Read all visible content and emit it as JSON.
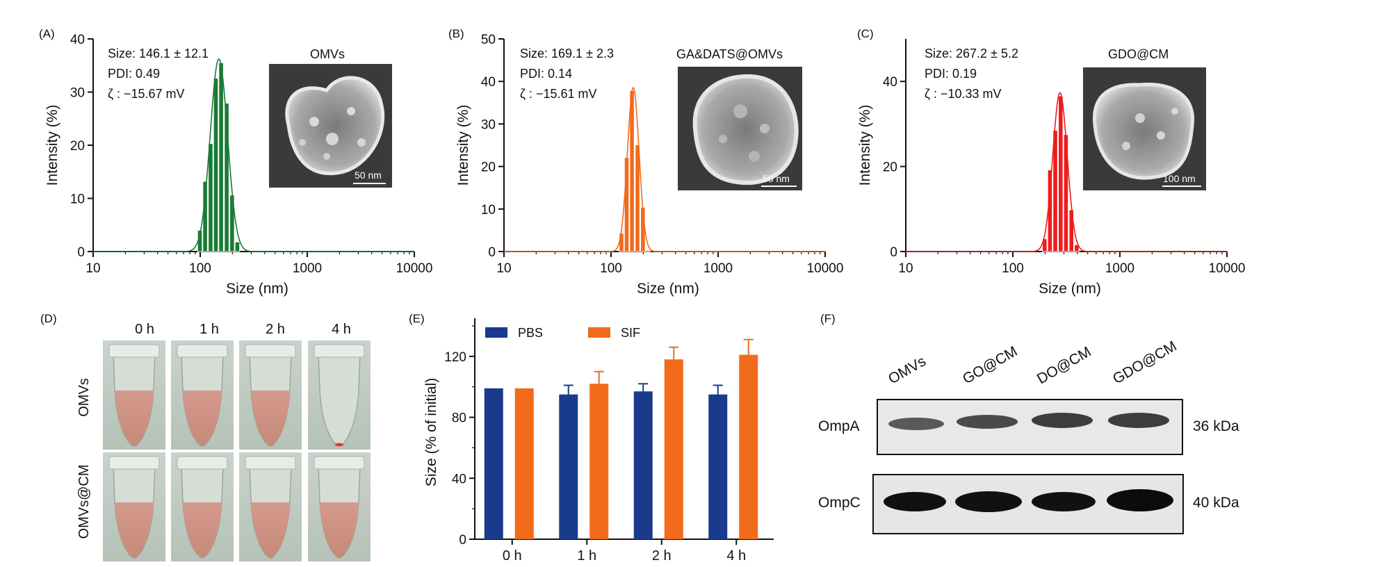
{
  "chart_data": [
    {
      "panel": "(A)",
      "type": "bar",
      "color": "#1a7a35",
      "xscale": "log",
      "xlim": [
        10,
        10000
      ],
      "xticks": [
        "10",
        "100",
        "1000",
        "10000"
      ],
      "ylim": [
        0,
        40
      ],
      "yticks": [
        "0",
        "10",
        "20",
        "30",
        "40"
      ],
      "xlabel": "Size (nm)",
      "ylabel": "Intensity (%)",
      "x": [
        100,
        112,
        126,
        141,
        158,
        178,
        200,
        224
      ],
      "values": [
        4.0,
        13.2,
        20.3,
        32.6,
        35.5,
        27.9,
        10.6,
        1.8
      ],
      "stats": [
        "Size: 146.1 ± 12.1",
        "PDI:  0.49",
        "ζ : −15.67 mV"
      ],
      "title": "OMVs",
      "scalebar": "50 nm"
    },
    {
      "panel": "(B)",
      "type": "bar",
      "color": "#f26a1b",
      "xscale": "log",
      "xlim": [
        10,
        10000
      ],
      "xticks": [
        "10",
        "100",
        "1000",
        "10000"
      ],
      "ylim": [
        0,
        50
      ],
      "yticks": [
        "0",
        "10",
        "20",
        "30",
        "40",
        "50"
      ],
      "xlabel": "Size (nm)",
      "ylabel": "Intensity (%)",
      "x": [
        126,
        141,
        158,
        178,
        200,
        224
      ],
      "values": [
        4.3,
        22.1,
        37.8,
        25.1,
        10.4,
        0.3
      ],
      "stats": [
        "Size: 169.1 ± 2.3",
        "PDI:  0.14",
        "ζ : −15.61 mV"
      ],
      "title": "GA&DATS@OMVs",
      "scalebar": "50 nm"
    },
    {
      "panel": "(C)",
      "type": "bar",
      "color": "#ee1c1c",
      "xscale": "log",
      "xlim": [
        10,
        10000
      ],
      "xticks": [
        "10",
        "100",
        "1000",
        "10000"
      ],
      "ylim": [
        0,
        50
      ],
      "yticks": [
        "0",
        "20",
        "40"
      ],
      "xlabel": "Size (nm)",
      "ylabel": "Intensity (%)",
      "x": [
        200,
        224,
        251,
        282,
        316,
        355,
        398
      ],
      "values": [
        3.0,
        19.2,
        28.5,
        36.6,
        27.5,
        9.8,
        1.6
      ],
      "stats": [
        "Size: 267.2 ± 5.2",
        "PDI:  0.19",
        "ζ : −10.33 mV"
      ],
      "title": "GDO@CM",
      "scalebar": "100 nm"
    },
    {
      "panel": "(E)",
      "type": "bar",
      "categories": [
        "0 h",
        "1 h",
        "2 h",
        "4 h"
      ],
      "ylabel": "Size (% of initial)",
      "ylim": [
        0,
        145
      ],
      "yticks": [
        "0",
        "40",
        "80",
        "120"
      ],
      "series": [
        {
          "name": "PBS",
          "color": "#1a3a8c",
          "values": [
            99,
            95,
            97,
            95
          ],
          "errors": [
            0,
            6,
            5,
            6
          ]
        },
        {
          "name": "SIF",
          "color": "#f26a1b",
          "values": [
            99,
            102,
            118,
            121
          ],
          "errors": [
            0,
            8,
            8,
            10
          ]
        }
      ]
    }
  ],
  "panel_d": {
    "label": "(D)",
    "times": [
      "0 h",
      "1 h",
      "2 h",
      "4 h"
    ],
    "rows": [
      "OMVs",
      "OMVs@CM"
    ],
    "liquid_level": [
      [
        1,
        1,
        1,
        0
      ],
      [
        1,
        1,
        1,
        1
      ]
    ]
  },
  "panel_f": {
    "label": "(F)",
    "lanes": [
      "OMVs",
      "GO@CM",
      "DO@CM",
      "GDO@CM"
    ],
    "blots": [
      {
        "name": "OmpA",
        "size": "36 kDa"
      },
      {
        "name": "OmpC",
        "size": "40 kDa"
      }
    ]
  }
}
